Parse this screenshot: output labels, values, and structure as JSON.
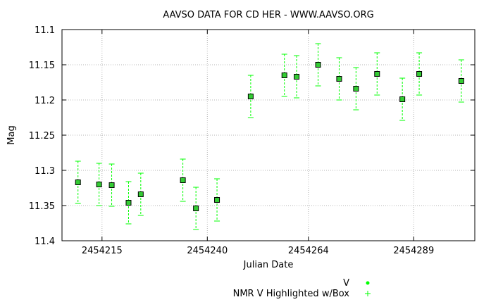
{
  "chart_data": {
    "type": "scatter",
    "title": "AAVSO DATA FOR CD HER - WWW.AAVSO.ORG",
    "xlabel": "Julian Date",
    "ylabel": "Mag",
    "xlim": [
      2454205.5,
      2454303.5
    ],
    "ylim": [
      11.4,
      11.1
    ],
    "y_inverted": true,
    "grid": true,
    "x_ticks": [
      2454215,
      2454240,
      2454264,
      2454289
    ],
    "y_ticks": [
      11.1,
      11.15,
      11.2,
      11.25,
      11.3,
      11.35,
      11.4
    ],
    "legend": {
      "placement": "bottom-right",
      "entries": [
        "V",
        "NMR V Highlighted w/Box"
      ]
    },
    "colors": {
      "marker": "#00ff00",
      "marker_fill": "#33cc33",
      "errorbar": "#00ff00",
      "box": "#000000",
      "grid": "#b4b4b4"
    },
    "series": [
      {
        "name": "V",
        "x": [
          2454209.3,
          2454214.3,
          2454217.3,
          2454221.3,
          2454224.2,
          2454234.2,
          2454237.3,
          2454242.3,
          2454250.3,
          2454258.3,
          2454261.2,
          2454266.3,
          2454271.3,
          2454275.3,
          2454280.3,
          2454286.3,
          2454290.3,
          2454300.3
        ],
        "y": [
          11.317,
          11.32,
          11.321,
          11.346,
          11.334,
          11.314,
          11.354,
          11.342,
          11.195,
          11.165,
          11.167,
          11.15,
          11.17,
          11.184,
          11.163,
          11.199,
          11.163,
          11.173
        ],
        "error": [
          0.03,
          0.03,
          0.03,
          0.03,
          0.03,
          0.03,
          0.03,
          0.03,
          0.03,
          0.03,
          0.03,
          0.03,
          0.03,
          0.03,
          0.03,
          0.03,
          0.03,
          0.03
        ]
      }
    ]
  }
}
